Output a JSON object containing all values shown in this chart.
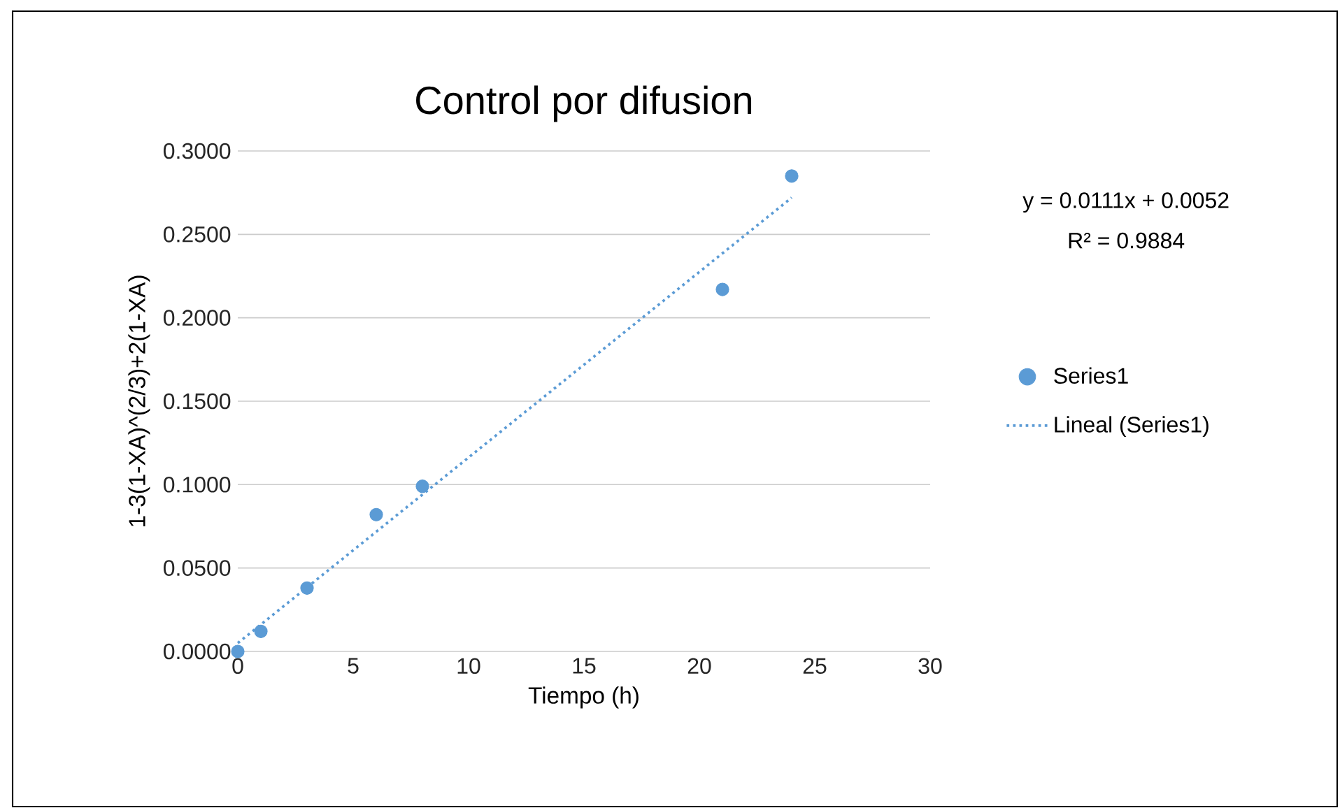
{
  "chart_data": {
    "type": "scatter",
    "title": "Control por difusion",
    "xlabel": "Tiempo (h)",
    "ylabel": "1-3(1-XA)^(2/3)+2(1-XA)",
    "xlim": [
      0,
      30
    ],
    "xticks": [
      0,
      5,
      10,
      15,
      20,
      25,
      30
    ],
    "ylim": [
      0,
      0.3
    ],
    "yticks": [
      {
        "value": 0,
        "label": "0.0000"
      },
      {
        "value": 0.05,
        "label": "0.0500"
      },
      {
        "value": 0.1,
        "label": "0.1000"
      },
      {
        "value": 0.15,
        "label": "0.1500"
      },
      {
        "value": 0.2,
        "label": "0.2000"
      },
      {
        "value": 0.25,
        "label": "0.2500"
      },
      {
        "value": 0.3,
        "label": "0.3000"
      }
    ],
    "grid": "y",
    "legend": "right",
    "marker": "circle",
    "series": [
      {
        "name": "Series1",
        "color": "#5b9bd5",
        "x": [
          0,
          1,
          3,
          6,
          8,
          21,
          24
        ],
        "values": [
          0,
          0.012,
          0.038,
          0.082,
          0.099,
          0.217,
          0.285
        ]
      },
      {
        "name": "Lineal (Series1)",
        "type": "line",
        "marker": "none",
        "line_style": "dotted",
        "color": "#5b9bd5",
        "x": [
          0,
          24
        ],
        "values": [
          0.005,
          0.272
        ]
      }
    ],
    "annotations": [
      "y = 0.0111x + 0.0052",
      "R² = 0.9884"
    ]
  }
}
